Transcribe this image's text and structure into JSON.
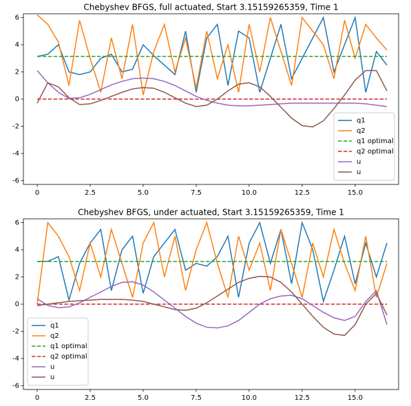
{
  "chart_data": [
    {
      "type": "line",
      "title": "Chebyshev BFGS, full actuated, Start 3.15159265359, Time 1",
      "x": [
        0,
        0.5,
        1,
        1.5,
        2,
        2.5,
        3,
        3.5,
        4,
        4.5,
        5,
        5.5,
        6,
        6.5,
        7,
        7.5,
        8,
        8.5,
        9,
        9.5,
        10,
        10.5,
        11,
        11.5,
        12,
        12.5,
        13,
        13.5,
        14,
        14.5,
        15,
        15.5,
        16,
        16.5
      ],
      "xlim": [
        -0.65,
        17.05
      ],
      "xticks": [
        0.0,
        {
          "value": 2.5,
          "label": "2.5"
        },
        {
          "value": 5,
          "label": "5.0"
        },
        {
          "value": 7.5,
          "label": "7.5"
        },
        {
          "value": 10,
          "label": "10.0"
        },
        {
          "value": 12.5,
          "label": "12.5"
        },
        {
          "value": 15,
          "label": "15.0"
        }
      ],
      "ylim": [
        -6.28,
        6.28
      ],
      "yticks": [
        -6,
        -4,
        -2,
        0,
        2,
        4,
        6
      ],
      "legend": "lower right",
      "series": [
        {
          "name": "q1",
          "color": "#1f77b4",
          "linestyle": "solid",
          "values": [
            3.14,
            3.3,
            4.0,
            2.0,
            1.8,
            2.0,
            3.0,
            3.3,
            2.0,
            2.2,
            4.0,
            3.2,
            2.5,
            1.8,
            5.0,
            0.5,
            4.5,
            5.5,
            1.0,
            5.0,
            4.5,
            0.5,
            3.0,
            5.5,
            1.5,
            3.0,
            4.5,
            6.0,
            2.0,
            4.0,
            6.0,
            0.5,
            3.5,
            2.5
          ]
        },
        {
          "name": "q2",
          "color": "#ff7f0e",
          "linestyle": "solid",
          "values": [
            6.2,
            5.5,
            4.2,
            1.0,
            5.8,
            3.0,
            0.5,
            4.5,
            1.5,
            5.5,
            0.3,
            3.5,
            5.5,
            2.0,
            4.5,
            0.8,
            5.0,
            1.5,
            4.0,
            0.5,
            5.5,
            2.0,
            6.0,
            3.5,
            1.0,
            6.0,
            5.0,
            4.0,
            1.5,
            5.8,
            3.0,
            5.5,
            4.5,
            3.6
          ]
        },
        {
          "name": "q1 optimal",
          "color": "#2ca02c",
          "linestyle": "dashed",
          "values": [
            3.14159,
            3.14159,
            3.14159,
            3.14159,
            3.14159,
            3.14159,
            3.14159,
            3.14159,
            3.14159,
            3.14159,
            3.14159,
            3.14159,
            3.14159,
            3.14159,
            3.14159,
            3.14159,
            3.14159,
            3.14159,
            3.14159,
            3.14159,
            3.14159,
            3.14159,
            3.14159,
            3.14159,
            3.14159,
            3.14159,
            3.14159,
            3.14159,
            3.14159,
            3.14159,
            3.14159,
            3.14159,
            3.14159,
            3.14159
          ]
        },
        {
          "name": "q2 optimal",
          "color": "#d62728",
          "linestyle": "dashed",
          "values": [
            0,
            0,
            0,
            0,
            0,
            0,
            0,
            0,
            0,
            0,
            0,
            0,
            0,
            0,
            0,
            0,
            0,
            0,
            0,
            0,
            0,
            0,
            0,
            0,
            0,
            0,
            0,
            0,
            0,
            0,
            0,
            0,
            0,
            0
          ]
        },
        {
          "name": "u",
          "color": "#9467bd",
          "linestyle": "solid",
          "values": [
            2.1,
            1.2,
            0.5,
            0.05,
            0.1,
            0.35,
            0.7,
            1.05,
            1.3,
            1.5,
            1.55,
            1.5,
            1.3,
            1.0,
            0.6,
            0.2,
            -0.1,
            -0.3,
            -0.45,
            -0.5,
            -0.5,
            -0.45,
            -0.4,
            -0.35,
            -0.3,
            -0.3,
            -0.3,
            -0.3,
            -0.3,
            -0.3,
            -0.3,
            -0.35,
            -0.45,
            -0.55
          ]
        },
        {
          "name": "u",
          "color": "#8c564b",
          "linestyle": "solid",
          "values": [
            -0.3,
            1.2,
            0.9,
            0.1,
            -0.4,
            -0.35,
            -0.1,
            0.2,
            0.5,
            0.75,
            0.85,
            0.8,
            0.5,
            0.1,
            -0.3,
            -0.55,
            -0.45,
            0.0,
            0.6,
            1.1,
            1.2,
            0.9,
            0.2,
            -0.6,
            -1.4,
            -1.95,
            -2.05,
            -1.6,
            -0.7,
            0.3,
            1.4,
            2.1,
            2.1,
            0.6
          ]
        }
      ]
    },
    {
      "type": "line",
      "title": "Chebyshev BFGS, under actuated, Start 3.15159265359, Time 1",
      "x": [
        0,
        0.5,
        1,
        1.5,
        2,
        2.5,
        3,
        3.5,
        4,
        4.5,
        5,
        5.5,
        6,
        6.5,
        7,
        7.5,
        8,
        8.5,
        9,
        9.5,
        10,
        10.5,
        11,
        11.5,
        12,
        12.5,
        13,
        13.5,
        14,
        14.5,
        15,
        15.5,
        16,
        16.5
      ],
      "xlim": [
        -0.65,
        17.05
      ],
      "xticks": [
        0.0,
        {
          "value": 2.5,
          "label": "2.5"
        },
        {
          "value": 5,
          "label": "5.0"
        },
        {
          "value": 7.5,
          "label": "7.5"
        },
        {
          "value": 10,
          "label": "10.0"
        },
        {
          "value": 12.5,
          "label": "12.5"
        },
        {
          "value": 15,
          "label": "15.0"
        }
      ],
      "ylim": [
        -6.28,
        6.28
      ],
      "yticks": [
        -6,
        -4,
        -2,
        0,
        2,
        4,
        6
      ],
      "legend": "lower left",
      "series": [
        {
          "name": "q1",
          "color": "#1f77b4",
          "linestyle": "solid",
          "values": [
            3.14,
            3.15,
            3.5,
            0.3,
            3.0,
            4.5,
            5.5,
            1.0,
            4.0,
            5.0,
            0.8,
            3.5,
            4.5,
            5.5,
            2.5,
            3.0,
            2.8,
            3.5,
            5.0,
            0.5,
            4.5,
            6.0,
            3.0,
            5.5,
            1.5,
            6.0,
            4.0,
            0.2,
            2.5,
            5.0,
            1.5,
            4.5,
            2.0,
            4.5
          ]
        },
        {
          "name": "q2",
          "color": "#ff7f0e",
          "linestyle": "solid",
          "values": [
            0.0,
            6.0,
            5.0,
            3.5,
            1.0,
            4.5,
            2.0,
            5.5,
            3.0,
            0.5,
            4.5,
            6.0,
            2.0,
            5.0,
            1.0,
            4.0,
            6.0,
            3.0,
            0.5,
            5.0,
            2.5,
            4.5,
            1.0,
            5.5,
            3.0,
            0.5,
            4.5,
            2.0,
            5.5,
            3.0,
            1.0,
            5.0,
            0.5,
            3.0
          ]
        },
        {
          "name": "q1 optimal",
          "color": "#2ca02c",
          "linestyle": "dashed",
          "values": [
            3.14159,
            3.14159,
            3.14159,
            3.14159,
            3.14159,
            3.14159,
            3.14159,
            3.14159,
            3.14159,
            3.14159,
            3.14159,
            3.14159,
            3.14159,
            3.14159,
            3.14159,
            3.14159,
            3.14159,
            3.14159,
            3.14159,
            3.14159,
            3.14159,
            3.14159,
            3.14159,
            3.14159,
            3.14159,
            3.14159,
            3.14159,
            3.14159,
            3.14159,
            3.14159,
            3.14159,
            3.14159,
            3.14159,
            3.14159
          ]
        },
        {
          "name": "q2 optimal",
          "color": "#d62728",
          "linestyle": "dashed",
          "values": [
            0,
            0,
            0,
            0,
            0,
            0,
            0,
            0,
            0,
            0,
            0,
            0,
            0,
            0,
            0,
            0,
            0,
            0,
            0,
            0,
            0,
            0,
            0,
            0,
            0,
            0,
            0,
            0,
            0,
            0,
            0,
            0,
            0,
            0
          ]
        },
        {
          "name": "u",
          "color": "#9467bd",
          "linestyle": "solid",
          "values": [
            0.4,
            -0.1,
            -0.25,
            -0.2,
            0.1,
            0.5,
            0.9,
            1.3,
            1.6,
            1.65,
            1.4,
            0.9,
            0.3,
            -0.3,
            -0.9,
            -1.4,
            -1.7,
            -1.75,
            -1.6,
            -1.2,
            -0.6,
            0.0,
            0.4,
            0.6,
            0.65,
            0.4,
            -0.1,
            -0.6,
            -1.0,
            -1.2,
            -0.9,
            0.2,
            1.0,
            -1.5
          ]
        },
        {
          "name": "u",
          "color": "#8c564b",
          "linestyle": "solid",
          "values": [
            -0.1,
            0.0,
            0.1,
            0.2,
            0.25,
            0.3,
            0.35,
            0.35,
            0.35,
            0.3,
            0.2,
            0.0,
            -0.2,
            -0.4,
            -0.45,
            -0.3,
            0.1,
            0.6,
            1.1,
            1.6,
            1.9,
            2.05,
            2.0,
            1.6,
            0.9,
            0.0,
            -0.9,
            -1.7,
            -2.2,
            -2.3,
            -1.5,
            0.0,
            0.8,
            -0.8
          ]
        }
      ]
    }
  ]
}
